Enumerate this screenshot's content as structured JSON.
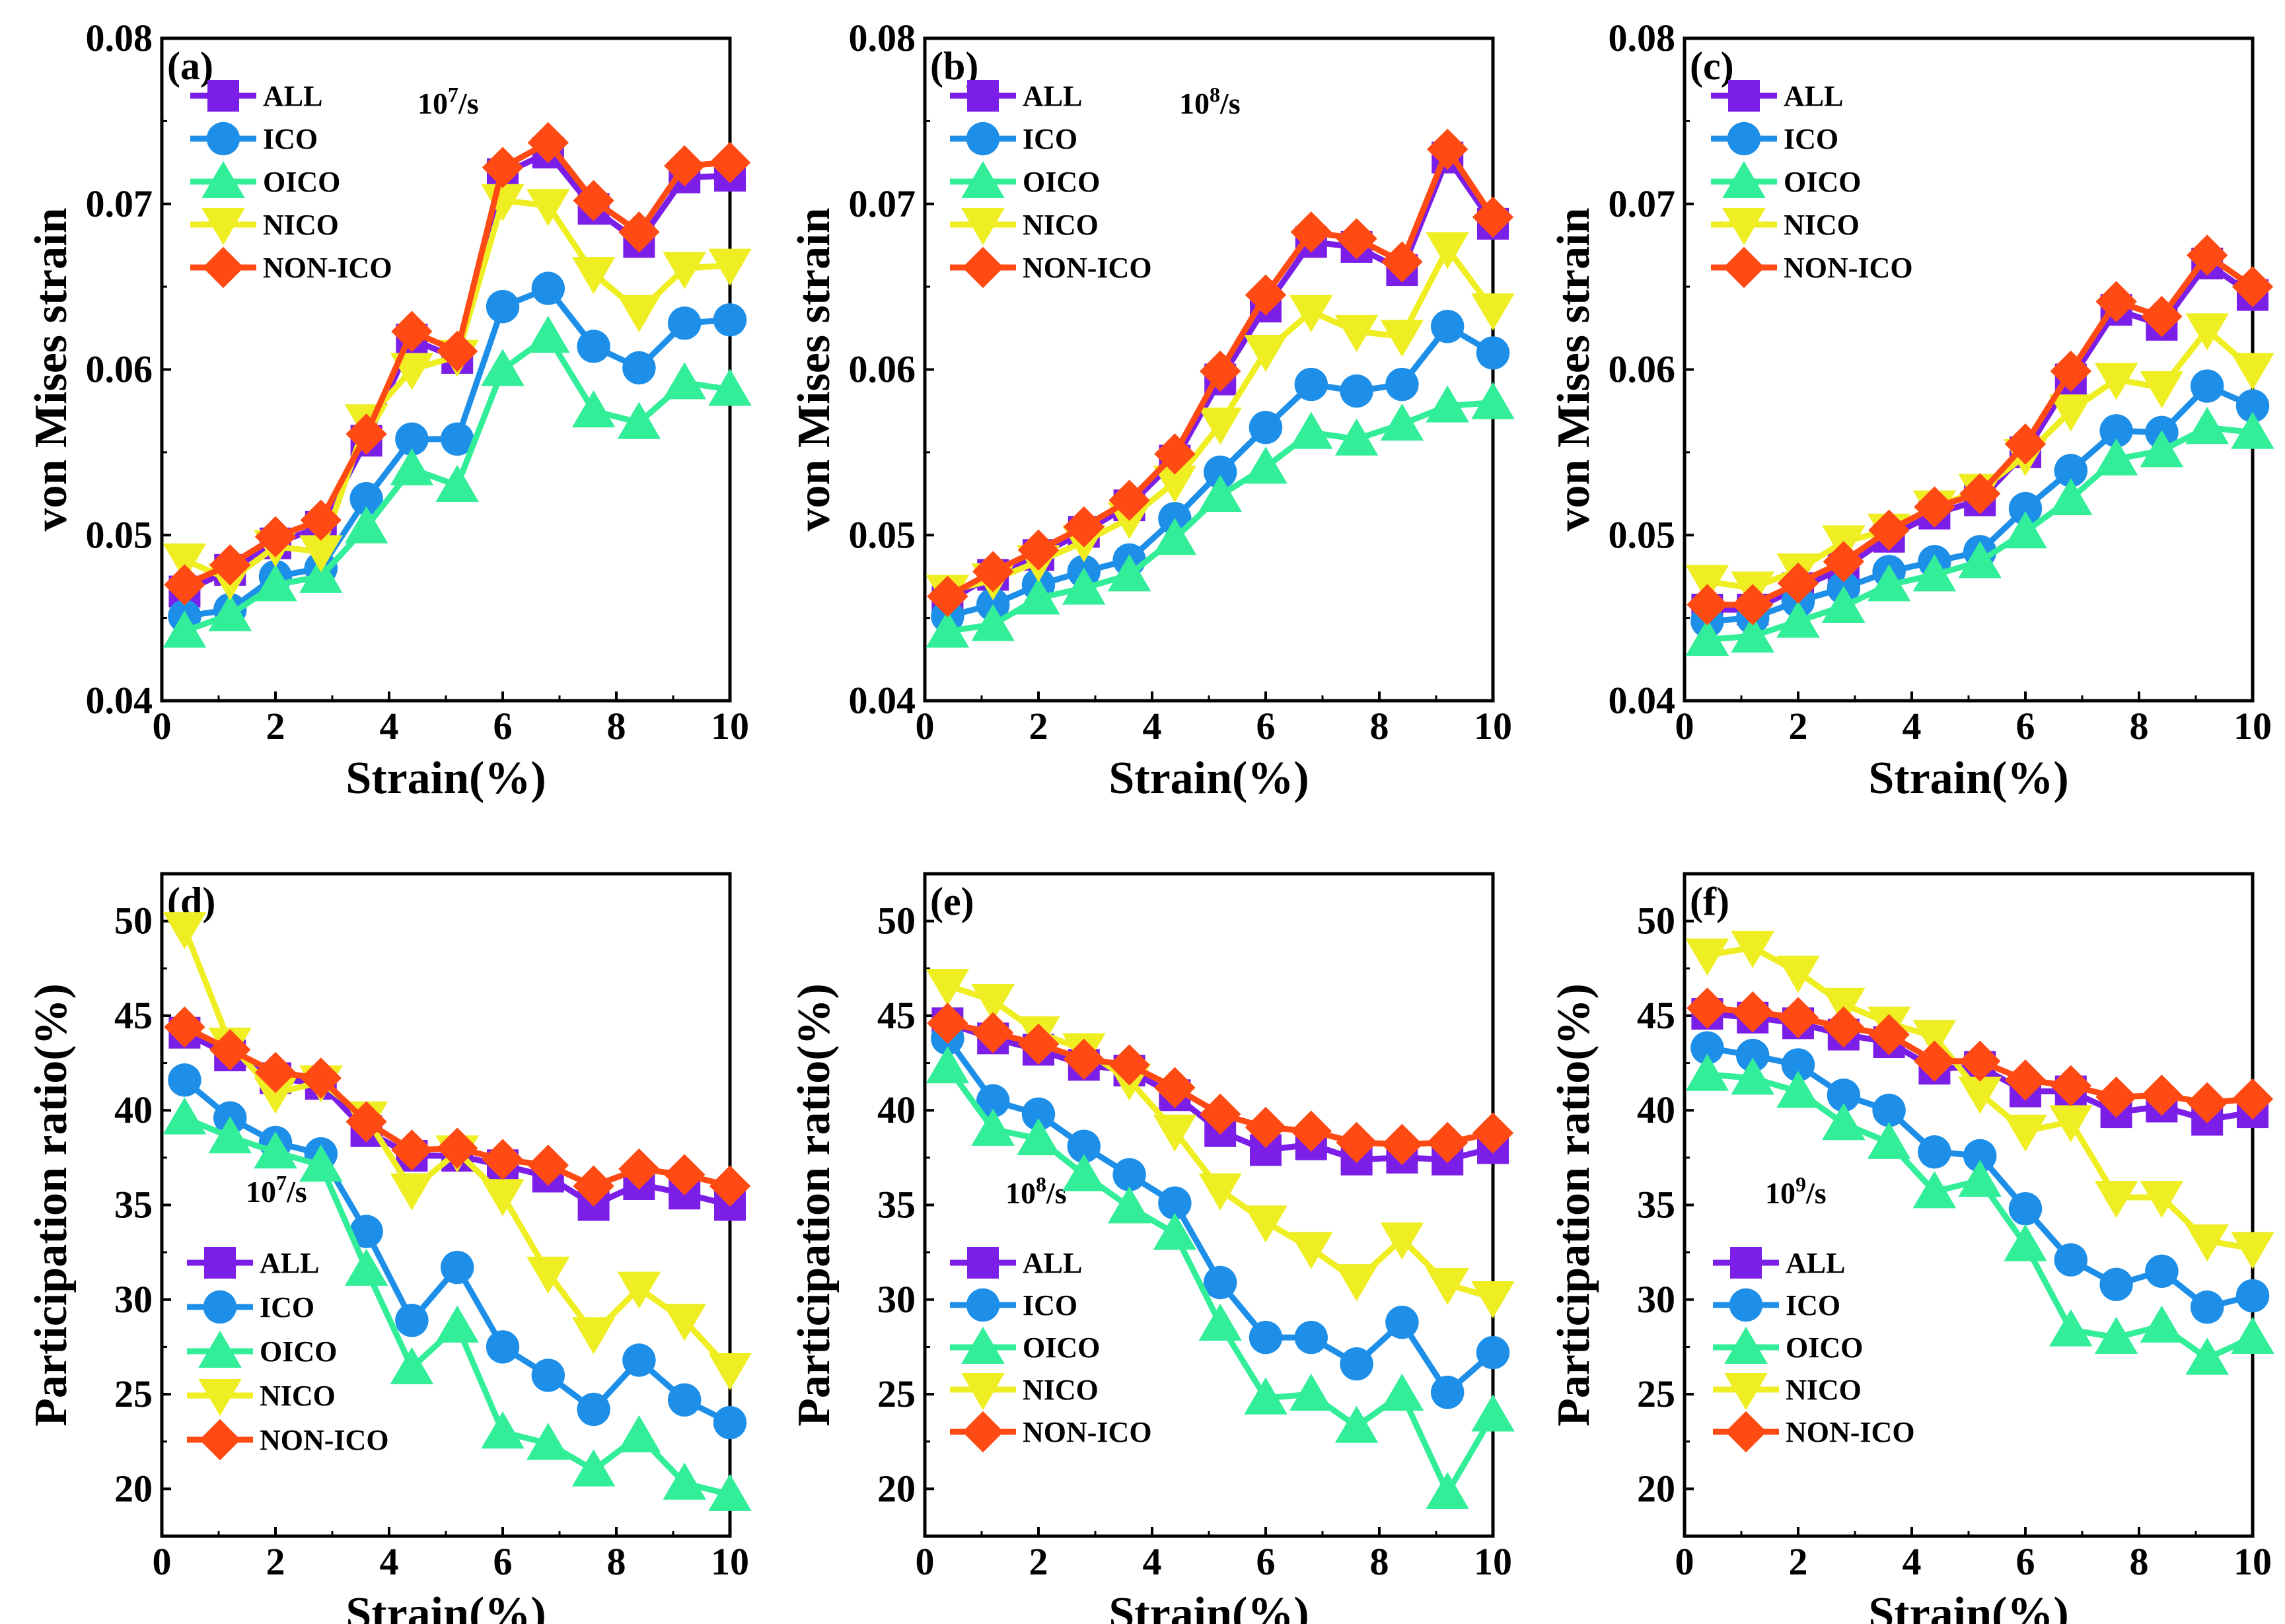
{
  "colors": {
    "ALL": "#7B1FE8",
    "ICO": "#1E8FE8",
    "OICO": "#33EE99",
    "NICO": "#EEEE22",
    "NON-ICO": "#FF4A14"
  },
  "markers": {
    "ALL": "square",
    "ICO": "circle",
    "OICO": "triangle-up",
    "NICO": "triangle-down",
    "NON-ICO": "diamond"
  },
  "chart_data": [
    {
      "type": "line",
      "panel": "(a)",
      "rate_base": "10",
      "rate_exp": "7",
      "rate_unit": "/s",
      "xlabel": "Strain(%)",
      "ylabel": "von Mises strain",
      "xlim": [
        0,
        10
      ],
      "ylim": [
        0.04,
        0.08
      ],
      "xticks": [
        "0",
        "2",
        "4",
        "6",
        "8",
        "10"
      ],
      "yticks": [
        "0.04",
        "0.05",
        "0.06",
        "0.07",
        "0.08"
      ],
      "x": [
        0.4,
        1.2,
        2.0,
        2.8,
        3.6,
        4.4,
        5.2,
        6.0,
        6.8,
        7.6,
        8.4,
        9.2,
        10.0
      ],
      "legend": [
        "ALL",
        "ICO",
        "OICO",
        "NICO",
        "NON-ICO"
      ],
      "series": [
        {
          "name": "ALL",
          "values": [
            0.0466,
            0.0479,
            0.0495,
            0.0505,
            0.0557,
            0.0618,
            0.0607,
            0.0718,
            0.0731,
            0.0697,
            0.0677,
            0.0716,
            0.0717
          ]
        },
        {
          "name": "ICO",
          "values": [
            0.0451,
            0.0455,
            0.0475,
            0.048,
            0.0522,
            0.0558,
            0.0558,
            0.0638,
            0.0649,
            0.0614,
            0.0601,
            0.0628,
            0.063
          ]
        },
        {
          "name": "OICO",
          "values": [
            0.0442,
            0.0452,
            0.047,
            0.0475,
            0.0505,
            0.054,
            0.053,
            0.06,
            0.062,
            0.0575,
            0.0568,
            0.0592,
            0.0588
          ]
        },
        {
          "name": "NICO",
          "values": [
            0.0485,
            0.0473,
            0.0493,
            0.049,
            0.0569,
            0.06,
            0.0608,
            0.0702,
            0.0699,
            0.0658,
            0.0635,
            0.0661,
            0.0663
          ]
        },
        {
          "name": "NON-ICO",
          "values": [
            0.047,
            0.0482,
            0.0499,
            0.0509,
            0.0561,
            0.0623,
            0.0611,
            0.0722,
            0.0737,
            0.0702,
            0.0683,
            0.0723,
            0.0725
          ]
        }
      ]
    },
    {
      "type": "line",
      "panel": "(b)",
      "rate_base": "10",
      "rate_exp": "8",
      "rate_unit": "/s",
      "xlabel": "Strain(%)",
      "ylabel": "von Mises strain",
      "xlim": [
        0,
        10
      ],
      "ylim": [
        0.04,
        0.08
      ],
      "xticks": [
        "0",
        "2",
        "4",
        "6",
        "8",
        "10"
      ],
      "yticks": [
        "0.04",
        "0.05",
        "0.06",
        "0.07",
        "0.08"
      ],
      "x": [
        0.4,
        1.2,
        2.0,
        2.8,
        3.6,
        4.4,
        5.2,
        6.0,
        6.8,
        7.6,
        8.4,
        9.2,
        10.0
      ],
      "legend": [
        "ALL",
        "ICO",
        "OICO",
        "NICO",
        "NON-ICO"
      ],
      "series": [
        {
          "name": "ALL",
          "values": [
            0.046,
            0.0476,
            0.0488,
            0.0502,
            0.0518,
            0.0545,
            0.0594,
            0.0638,
            0.0677,
            0.0674,
            0.066,
            0.0728,
            0.0688
          ]
        },
        {
          "name": "ICO",
          "values": [
            0.0451,
            0.0458,
            0.047,
            0.0478,
            0.0485,
            0.051,
            0.0538,
            0.0565,
            0.0591,
            0.0587,
            0.0591,
            0.0626,
            0.061
          ]
        },
        {
          "name": "OICO",
          "values": [
            0.0442,
            0.0446,
            0.0462,
            0.0468,
            0.0476,
            0.0498,
            0.0524,
            0.0541,
            0.0562,
            0.0558,
            0.0567,
            0.0578,
            0.058
          ]
        },
        {
          "name": "NICO",
          "values": [
            0.0466,
            0.0473,
            0.0484,
            0.0496,
            0.051,
            0.0532,
            0.0567,
            0.0611,
            0.0635,
            0.0623,
            0.062,
            0.0673,
            0.0636
          ]
        },
        {
          "name": "NON-ICO",
          "values": [
            0.0463,
            0.0478,
            0.0491,
            0.0505,
            0.0521,
            0.0549,
            0.0599,
            0.0645,
            0.0683,
            0.0679,
            0.0665,
            0.0733,
            0.0692
          ]
        }
      ]
    },
    {
      "type": "line",
      "panel": "(c)",
      "rate_base": "",
      "rate_exp": "",
      "rate_unit": "",
      "xlabel": "Strain(%)",
      "ylabel": "von Mises strain",
      "xlim": [
        0,
        10
      ],
      "ylim": [
        0.04,
        0.08
      ],
      "xticks": [
        "0",
        "2",
        "4",
        "6",
        "8",
        "10"
      ],
      "yticks": [
        "0.04",
        "0.05",
        "0.06",
        "0.07",
        "0.08"
      ],
      "x": [
        0.4,
        1.2,
        2.0,
        2.8,
        3.6,
        4.4,
        5.2,
        6.0,
        6.8,
        7.6,
        8.4,
        9.2,
        10.0
      ],
      "legend": [
        "ALL",
        "ICO",
        "OICO",
        "NICO",
        "NON-ICO"
      ],
      "series": [
        {
          "name": "ALL",
          "values": [
            0.0455,
            0.0455,
            0.0468,
            0.048,
            0.0499,
            0.0513,
            0.0521,
            0.055,
            0.0594,
            0.0636,
            0.0627,
            0.0664,
            0.0645
          ]
        },
        {
          "name": "ICO",
          "values": [
            0.0448,
            0.045,
            0.046,
            0.0468,
            0.0478,
            0.0484,
            0.049,
            0.0516,
            0.0539,
            0.0563,
            0.0562,
            0.059,
            0.0578
          ]
        },
        {
          "name": "OICO",
          "values": [
            0.0437,
            0.0439,
            0.0448,
            0.0457,
            0.047,
            0.0476,
            0.0484,
            0.0502,
            0.0522,
            0.0546,
            0.0551,
            0.0565,
            0.0562
          ]
        },
        {
          "name": "NICO",
          "values": [
            0.0472,
            0.0468,
            0.0479,
            0.0496,
            0.0503,
            0.0517,
            0.0527,
            0.0548,
            0.0575,
            0.0594,
            0.0589,
            0.0624,
            0.06
          ]
        },
        {
          "name": "NON-ICO",
          "values": [
            0.0458,
            0.0458,
            0.0471,
            0.0484,
            0.0503,
            0.0517,
            0.0525,
            0.0555,
            0.0599,
            0.0641,
            0.0632,
            0.0669,
            0.065
          ]
        }
      ]
    },
    {
      "type": "line",
      "panel": "(d)",
      "rate_base": "10",
      "rate_exp": "7",
      "rate_unit": "/s",
      "xlabel": "Strain(%)",
      "ylabel": "Participation ratio(%)",
      "xlim": [
        0,
        10
      ],
      "ylim": [
        17.5,
        52.5
      ],
      "xticks": [
        "0",
        "2",
        "4",
        "6",
        "8",
        "10"
      ],
      "yticks": [
        "20",
        "25",
        "30",
        "35",
        "40",
        "45",
        "50"
      ],
      "x": [
        0.4,
        1.2,
        2.0,
        2.8,
        3.6,
        4.4,
        5.2,
        6.0,
        6.8,
        7.6,
        8.4,
        9.2,
        10.0
      ],
      "legend": [
        "ALL",
        "ICO",
        "OICO",
        "NICO",
        "NON-ICO"
      ],
      "series": [
        {
          "name": "ALL",
          "values": [
            44.1,
            42.9,
            41.7,
            41.4,
            38.9,
            37.6,
            37.6,
            37.1,
            36.5,
            35.0,
            36.1,
            35.6,
            35.0
          ]
        },
        {
          "name": "ICO",
          "values": [
            41.6,
            39.6,
            38.3,
            37.7,
            33.6,
            28.9,
            31.7,
            27.5,
            26.0,
            24.2,
            26.8,
            24.7,
            23.5
          ]
        },
        {
          "name": "OICO",
          "values": [
            39.6,
            38.6,
            37.8,
            37.1,
            31.6,
            26.4,
            28.6,
            23.0,
            22.4,
            21.0,
            22.8,
            20.3,
            19.7
          ]
        },
        {
          "name": "NICO",
          "values": [
            49.6,
            43.5,
            40.9,
            41.5,
            39.6,
            35.8,
            37.8,
            35.5,
            31.4,
            28.2,
            30.6,
            28.9,
            26.3
          ]
        },
        {
          "name": "NON-ICO",
          "values": [
            44.4,
            43.2,
            42.0,
            41.7,
            39.4,
            37.9,
            38.0,
            37.4,
            37.1,
            36.0,
            36.9,
            36.6,
            36.0
          ]
        }
      ]
    },
    {
      "type": "line",
      "panel": "(e)",
      "rate_base": "10",
      "rate_exp": "8",
      "rate_unit": "/s",
      "xlabel": "Strain(%)",
      "ylabel": "Participation ratio(%)",
      "xlim": [
        0,
        10
      ],
      "ylim": [
        17.5,
        52.5
      ],
      "xticks": [
        "0",
        "2",
        "4",
        "6",
        "8",
        "10"
      ],
      "yticks": [
        "20",
        "25",
        "30",
        "35",
        "40",
        "45",
        "50"
      ],
      "x": [
        0.4,
        1.2,
        2.0,
        2.8,
        3.6,
        4.4,
        5.2,
        6.0,
        6.8,
        7.6,
        8.4,
        9.2,
        10.0
      ],
      "legend": [
        "ALL",
        "ICO",
        "OICO",
        "NICO",
        "NON-ICO"
      ],
      "series": [
        {
          "name": "ALL",
          "values": [
            44.6,
            43.8,
            43.2,
            42.4,
            42.1,
            40.8,
            38.9,
            37.9,
            38.2,
            37.4,
            37.5,
            37.4,
            38.0
          ]
        },
        {
          "name": "ICO",
          "values": [
            43.8,
            40.5,
            39.8,
            38.1,
            36.6,
            35.1,
            30.9,
            28.0,
            28.0,
            26.6,
            28.8,
            25.1,
            27.2
          ]
        },
        {
          "name": "OICO",
          "values": [
            42.3,
            39.0,
            38.5,
            36.6,
            34.9,
            33.5,
            28.7,
            24.8,
            25.0,
            23.3,
            25.0,
            19.8,
            23.9
          ]
        },
        {
          "name": "NICO",
          "values": [
            46.6,
            45.8,
            44.1,
            43.2,
            41.6,
            38.9,
            35.8,
            34.1,
            32.7,
            31.0,
            33.2,
            30.8,
            30.1
          ]
        },
        {
          "name": "NON-ICO",
          "values": [
            44.6,
            44.1,
            43.5,
            42.7,
            42.4,
            41.2,
            39.8,
            39.1,
            38.9,
            38.3,
            38.2,
            38.3,
            38.8
          ]
        }
      ]
    },
    {
      "type": "line",
      "panel": "(f)",
      "rate_base": "10",
      "rate_exp": "9",
      "rate_unit": "/s",
      "xlabel": "Strain(%)",
      "ylabel": "Participation ratio(%)",
      "xlim": [
        0,
        10
      ],
      "ylim": [
        17.5,
        52.5
      ],
      "xticks": [
        "0",
        "2",
        "4",
        "6",
        "8",
        "10"
      ],
      "yticks": [
        "20",
        "25",
        "30",
        "35",
        "40",
        "45",
        "50"
      ],
      "x": [
        0.4,
        1.2,
        2.0,
        2.8,
        3.6,
        4.4,
        5.2,
        6.0,
        6.8,
        7.6,
        8.4,
        9.2,
        10.0
      ],
      "legend": [
        "ALL",
        "ICO",
        "OICO",
        "NICO",
        "NON-ICO"
      ],
      "series": [
        {
          "name": "ALL",
          "values": [
            45.1,
            44.9,
            44.6,
            44.0,
            43.6,
            42.2,
            42.3,
            41.0,
            41.0,
            39.9,
            40.2,
            39.5,
            39.9
          ]
        },
        {
          "name": "ICO",
          "values": [
            43.3,
            42.9,
            42.4,
            40.8,
            40.0,
            37.8,
            37.6,
            34.8,
            32.1,
            30.8,
            31.5,
            29.6,
            30.2
          ]
        },
        {
          "name": "OICO",
          "values": [
            41.9,
            41.7,
            41.0,
            39.3,
            38.3,
            35.7,
            36.3,
            32.9,
            28.4,
            28.0,
            28.6,
            26.9,
            28.0
          ]
        },
        {
          "name": "NICO",
          "values": [
            48.2,
            48.6,
            47.3,
            45.6,
            44.6,
            43.9,
            40.9,
            38.9,
            39.4,
            35.4,
            35.4,
            33.1,
            32.7
          ]
        },
        {
          "name": "NON-ICO",
          "values": [
            45.4,
            45.2,
            44.9,
            44.4,
            44.0,
            42.6,
            42.6,
            41.6,
            41.3,
            40.7,
            40.8,
            40.4,
            40.6
          ]
        }
      ]
    }
  ]
}
